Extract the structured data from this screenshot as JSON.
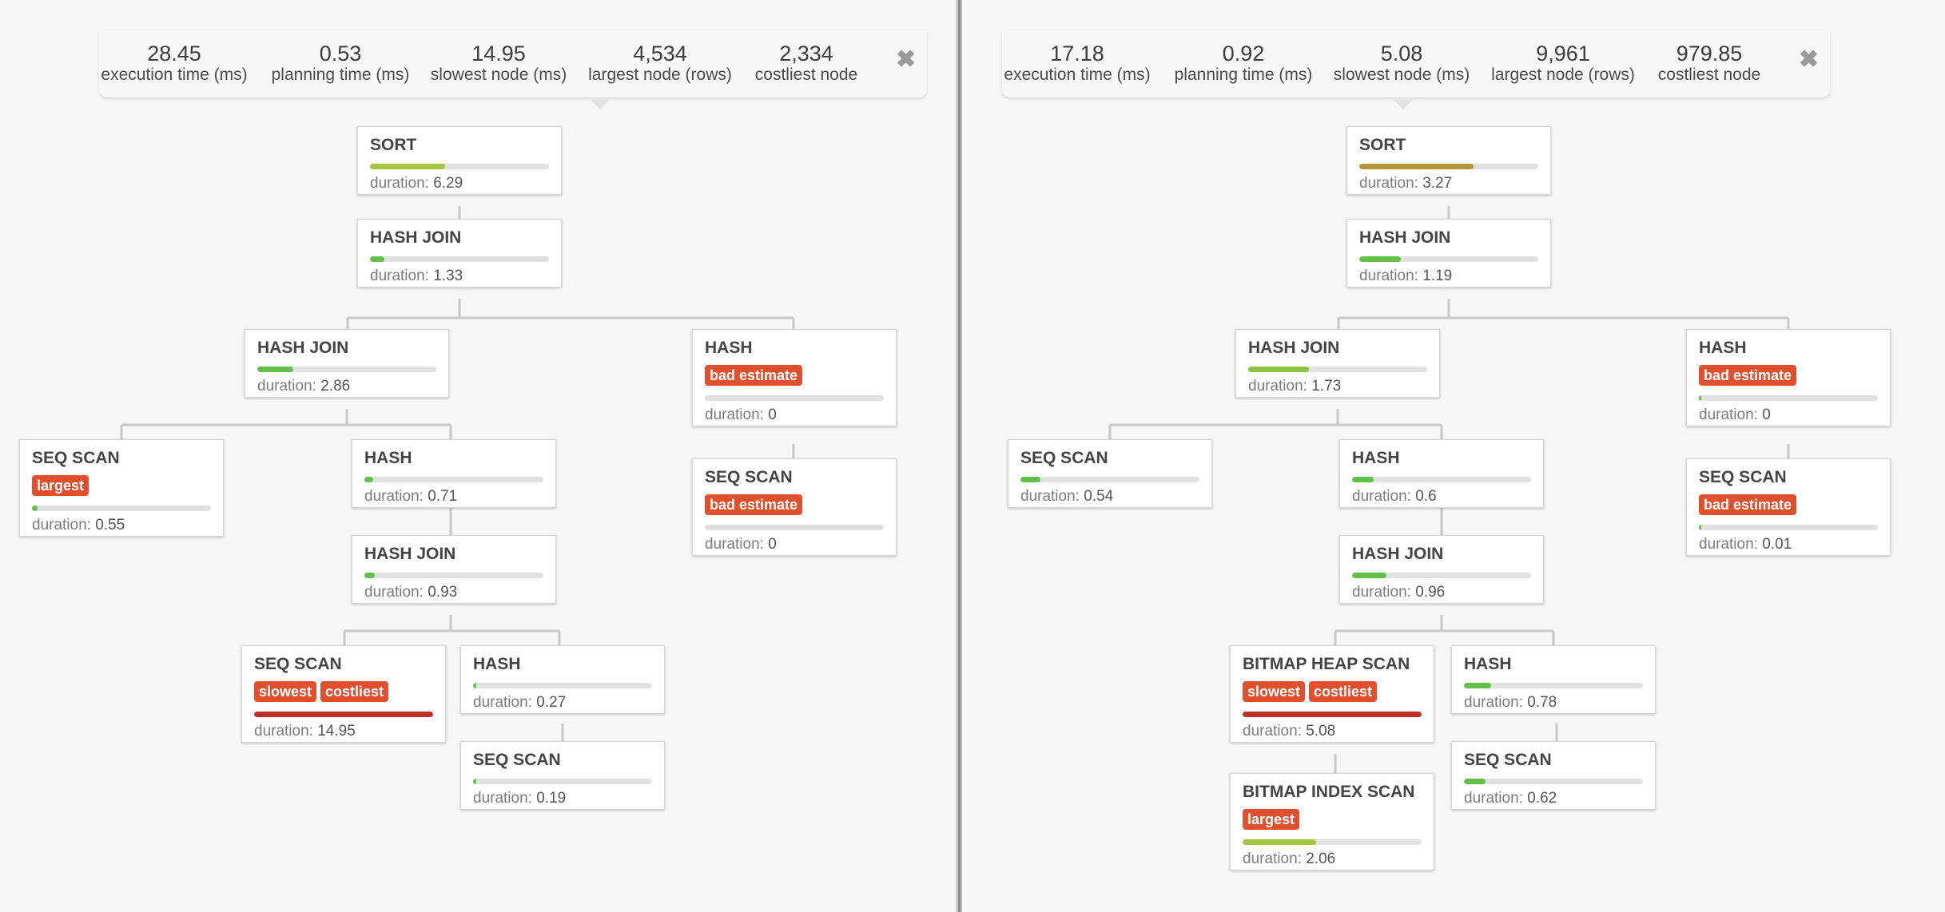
{
  "colors": {
    "accent_badge": "#e04f2e",
    "bar_track": "#e1e1e1",
    "connector": "#c8c8c8"
  },
  "panels": [
    {
      "id": "left",
      "stats": [
        {
          "value": "28.45",
          "label": "execution time (ms)"
        },
        {
          "value": "0.53",
          "label": "planning time (ms)"
        },
        {
          "value": "14.95",
          "label": "slowest node (ms)"
        },
        {
          "value": "4,534",
          "label": "largest node (rows)"
        },
        {
          "value": "2,334",
          "label": "costliest node"
        }
      ],
      "close_icon": "close-icon",
      "nodes": [
        {
          "id": "L1",
          "title": "SORT",
          "badges": [],
          "duration_label": "duration:",
          "duration": "6.29",
          "bar": 0.42,
          "bar_color": "#a3c541"
        },
        {
          "id": "L2",
          "title": "HASH JOIN",
          "badges": [],
          "duration_label": "duration:",
          "duration": "1.33",
          "bar": 0.08,
          "bar_color": "#62c04a"
        },
        {
          "id": "L3",
          "title": "HASH JOIN",
          "badges": [],
          "duration_label": "duration:",
          "duration": "2.86",
          "bar": 0.2,
          "bar_color": "#62c04a"
        },
        {
          "id": "L4",
          "title": "HASH",
          "badges": [
            "bad estimate"
          ],
          "duration_label": "duration:",
          "duration": "0",
          "bar": 0.0,
          "bar_color": "#62c04a"
        },
        {
          "id": "L5",
          "title": "SEQ SCAN",
          "badges": [
            "largest"
          ],
          "duration_label": "duration:",
          "duration": "0.55",
          "bar": 0.03,
          "bar_color": "#62c04a"
        },
        {
          "id": "L6",
          "title": "HASH",
          "badges": [],
          "duration_label": "duration:",
          "duration": "0.71",
          "bar": 0.05,
          "bar_color": "#62c04a"
        },
        {
          "id": "L7",
          "title": "SEQ SCAN",
          "badges": [
            "bad estimate"
          ],
          "duration_label": "duration:",
          "duration": "0",
          "bar": 0.0,
          "bar_color": "#62c04a"
        },
        {
          "id": "L8",
          "title": "HASH JOIN",
          "badges": [],
          "duration_label": "duration:",
          "duration": "0.93",
          "bar": 0.06,
          "bar_color": "#62c04a"
        },
        {
          "id": "L9",
          "title": "SEQ SCAN",
          "badges": [
            "slowest",
            "costliest"
          ],
          "duration_label": "duration:",
          "duration": "14.95",
          "bar": 1.0,
          "bar_color": "#bb2f24"
        },
        {
          "id": "L10",
          "title": "HASH",
          "badges": [],
          "duration_label": "duration:",
          "duration": "0.27",
          "bar": 0.02,
          "bar_color": "#62c04a"
        },
        {
          "id": "L11",
          "title": "SEQ SCAN",
          "badges": [],
          "duration_label": "duration:",
          "duration": "0.19",
          "bar": 0.02,
          "bar_color": "#62c04a"
        }
      ]
    },
    {
      "id": "right",
      "stats": [
        {
          "value": "17.18",
          "label": "execution time (ms)"
        },
        {
          "value": "0.92",
          "label": "planning time (ms)"
        },
        {
          "value": "5.08",
          "label": "slowest node (ms)"
        },
        {
          "value": "9,961",
          "label": "largest node (rows)"
        },
        {
          "value": "979.85",
          "label": "costliest node"
        }
      ],
      "close_icon": "close-icon",
      "nodes": [
        {
          "id": "R1",
          "title": "SORT",
          "badges": [],
          "duration_label": "duration:",
          "duration": "3.27",
          "bar": 0.64,
          "bar_color": "#b8943c"
        },
        {
          "id": "R2",
          "title": "HASH JOIN",
          "badges": [],
          "duration_label": "duration:",
          "duration": "1.19",
          "bar": 0.23,
          "bar_color": "#62c04a"
        },
        {
          "id": "R3",
          "title": "HASH JOIN",
          "badges": [],
          "duration_label": "duration:",
          "duration": "1.73",
          "bar": 0.34,
          "bar_color": "#8cc443"
        },
        {
          "id": "R4",
          "title": "HASH",
          "badges": [
            "bad estimate"
          ],
          "duration_label": "duration:",
          "duration": "0",
          "bar": 0.01,
          "bar_color": "#62c04a"
        },
        {
          "id": "R5",
          "title": "SEQ SCAN",
          "badges": [],
          "duration_label": "duration:",
          "duration": "0.54",
          "bar": 0.11,
          "bar_color": "#62c04a"
        },
        {
          "id": "R6",
          "title": "HASH",
          "badges": [],
          "duration_label": "duration:",
          "duration": "0.6",
          "bar": 0.12,
          "bar_color": "#62c04a"
        },
        {
          "id": "R7",
          "title": "SEQ SCAN",
          "badges": [
            "bad estimate"
          ],
          "duration_label": "duration:",
          "duration": "0.01",
          "bar": 0.01,
          "bar_color": "#62c04a"
        },
        {
          "id": "R8",
          "title": "HASH JOIN",
          "badges": [],
          "duration_label": "duration:",
          "duration": "0.96",
          "bar": 0.19,
          "bar_color": "#62c04a"
        },
        {
          "id": "R9",
          "title": "BITMAP HEAP SCAN",
          "badges": [
            "slowest",
            "costliest"
          ],
          "duration_label": "duration:",
          "duration": "5.08",
          "bar": 1.0,
          "bar_color": "#bb2f24"
        },
        {
          "id": "R10",
          "title": "HASH",
          "badges": [],
          "duration_label": "duration:",
          "duration": "0.78",
          "bar": 0.15,
          "bar_color": "#62c04a"
        },
        {
          "id": "R11",
          "title": "BITMAP INDEX SCAN",
          "badges": [
            "largest"
          ],
          "duration_label": "duration:",
          "duration": "2.06",
          "bar": 0.41,
          "bar_color": "#a3c541"
        },
        {
          "id": "R12",
          "title": "SEQ SCAN",
          "badges": [],
          "duration_label": "duration:",
          "duration": "0.62",
          "bar": 0.12,
          "bar_color": "#62c04a"
        }
      ]
    }
  ]
}
